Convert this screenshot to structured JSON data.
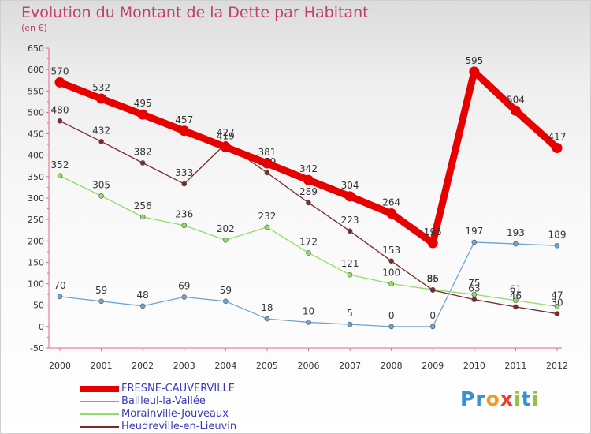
{
  "header": {
    "title": "Evolution du Montant de la Dette par Habitant",
    "subtitle": "(en €)"
  },
  "legend": {
    "items": [
      {
        "label": "FRESNE-CAUVERVILLE",
        "color": "#e60000"
      },
      {
        "label": "Bailleul-la-Vallée",
        "color": "#6fa4d2"
      },
      {
        "label": "Morainville-Jouveaux",
        "color": "#94dc6a"
      },
      {
        "label": "Heudreville-en-Lieuvin",
        "color": "#7a2a2a"
      }
    ]
  },
  "logo": {
    "letters": [
      "P",
      "r",
      "o",
      "x",
      "i",
      "t",
      "i"
    ],
    "colors": [
      "#3a8fd0",
      "#3a8fd0",
      "#f29c1f",
      "#e8402a",
      "#8cc63f",
      "#3a8fd0",
      "#8cc63f"
    ]
  },
  "chart_data": {
    "type": "line",
    "title": "Evolution du Montant de la Dette par Habitant",
    "subtitle": "(en €)",
    "xlabel": "",
    "ylabel": "",
    "x": [
      "2000",
      "2001",
      "2002",
      "2003",
      "2004",
      "2005",
      "2006",
      "2007",
      "2008",
      "2009",
      "2010",
      "2011",
      "2012"
    ],
    "ylim": [
      -50,
      650
    ],
    "yticks": [
      -50,
      0,
      50,
      100,
      150,
      200,
      250,
      300,
      350,
      400,
      450,
      500,
      550,
      600,
      650
    ],
    "grid": false,
    "legend_position": "bottom-left",
    "series": [
      {
        "name": "FRESNE-CAUVERVILLE",
        "color": "#e60000",
        "values": [
          570,
          532,
          495,
          457,
          419,
          381,
          342,
          304,
          264,
          195,
          595,
          504,
          417
        ]
      },
      {
        "name": "Bailleul-la-Vallée",
        "color": "#6fa4d2",
        "values": [
          70,
          59,
          48,
          69,
          59,
          18,
          10,
          5,
          0,
          0,
          197,
          193,
          189
        ]
      },
      {
        "name": "Morainville-Jouveaux",
        "color": "#94dc6a",
        "values": [
          352,
          305,
          256,
          236,
          202,
          232,
          172,
          121,
          100,
          86,
          75,
          61,
          47
        ]
      },
      {
        "name": "Heudreville-en-Lieuvin",
        "color": "#7a2a2a",
        "values": [
          480,
          432,
          382,
          333,
          427,
          359,
          289,
          223,
          153,
          85,
          63,
          46,
          30
        ]
      }
    ]
  }
}
